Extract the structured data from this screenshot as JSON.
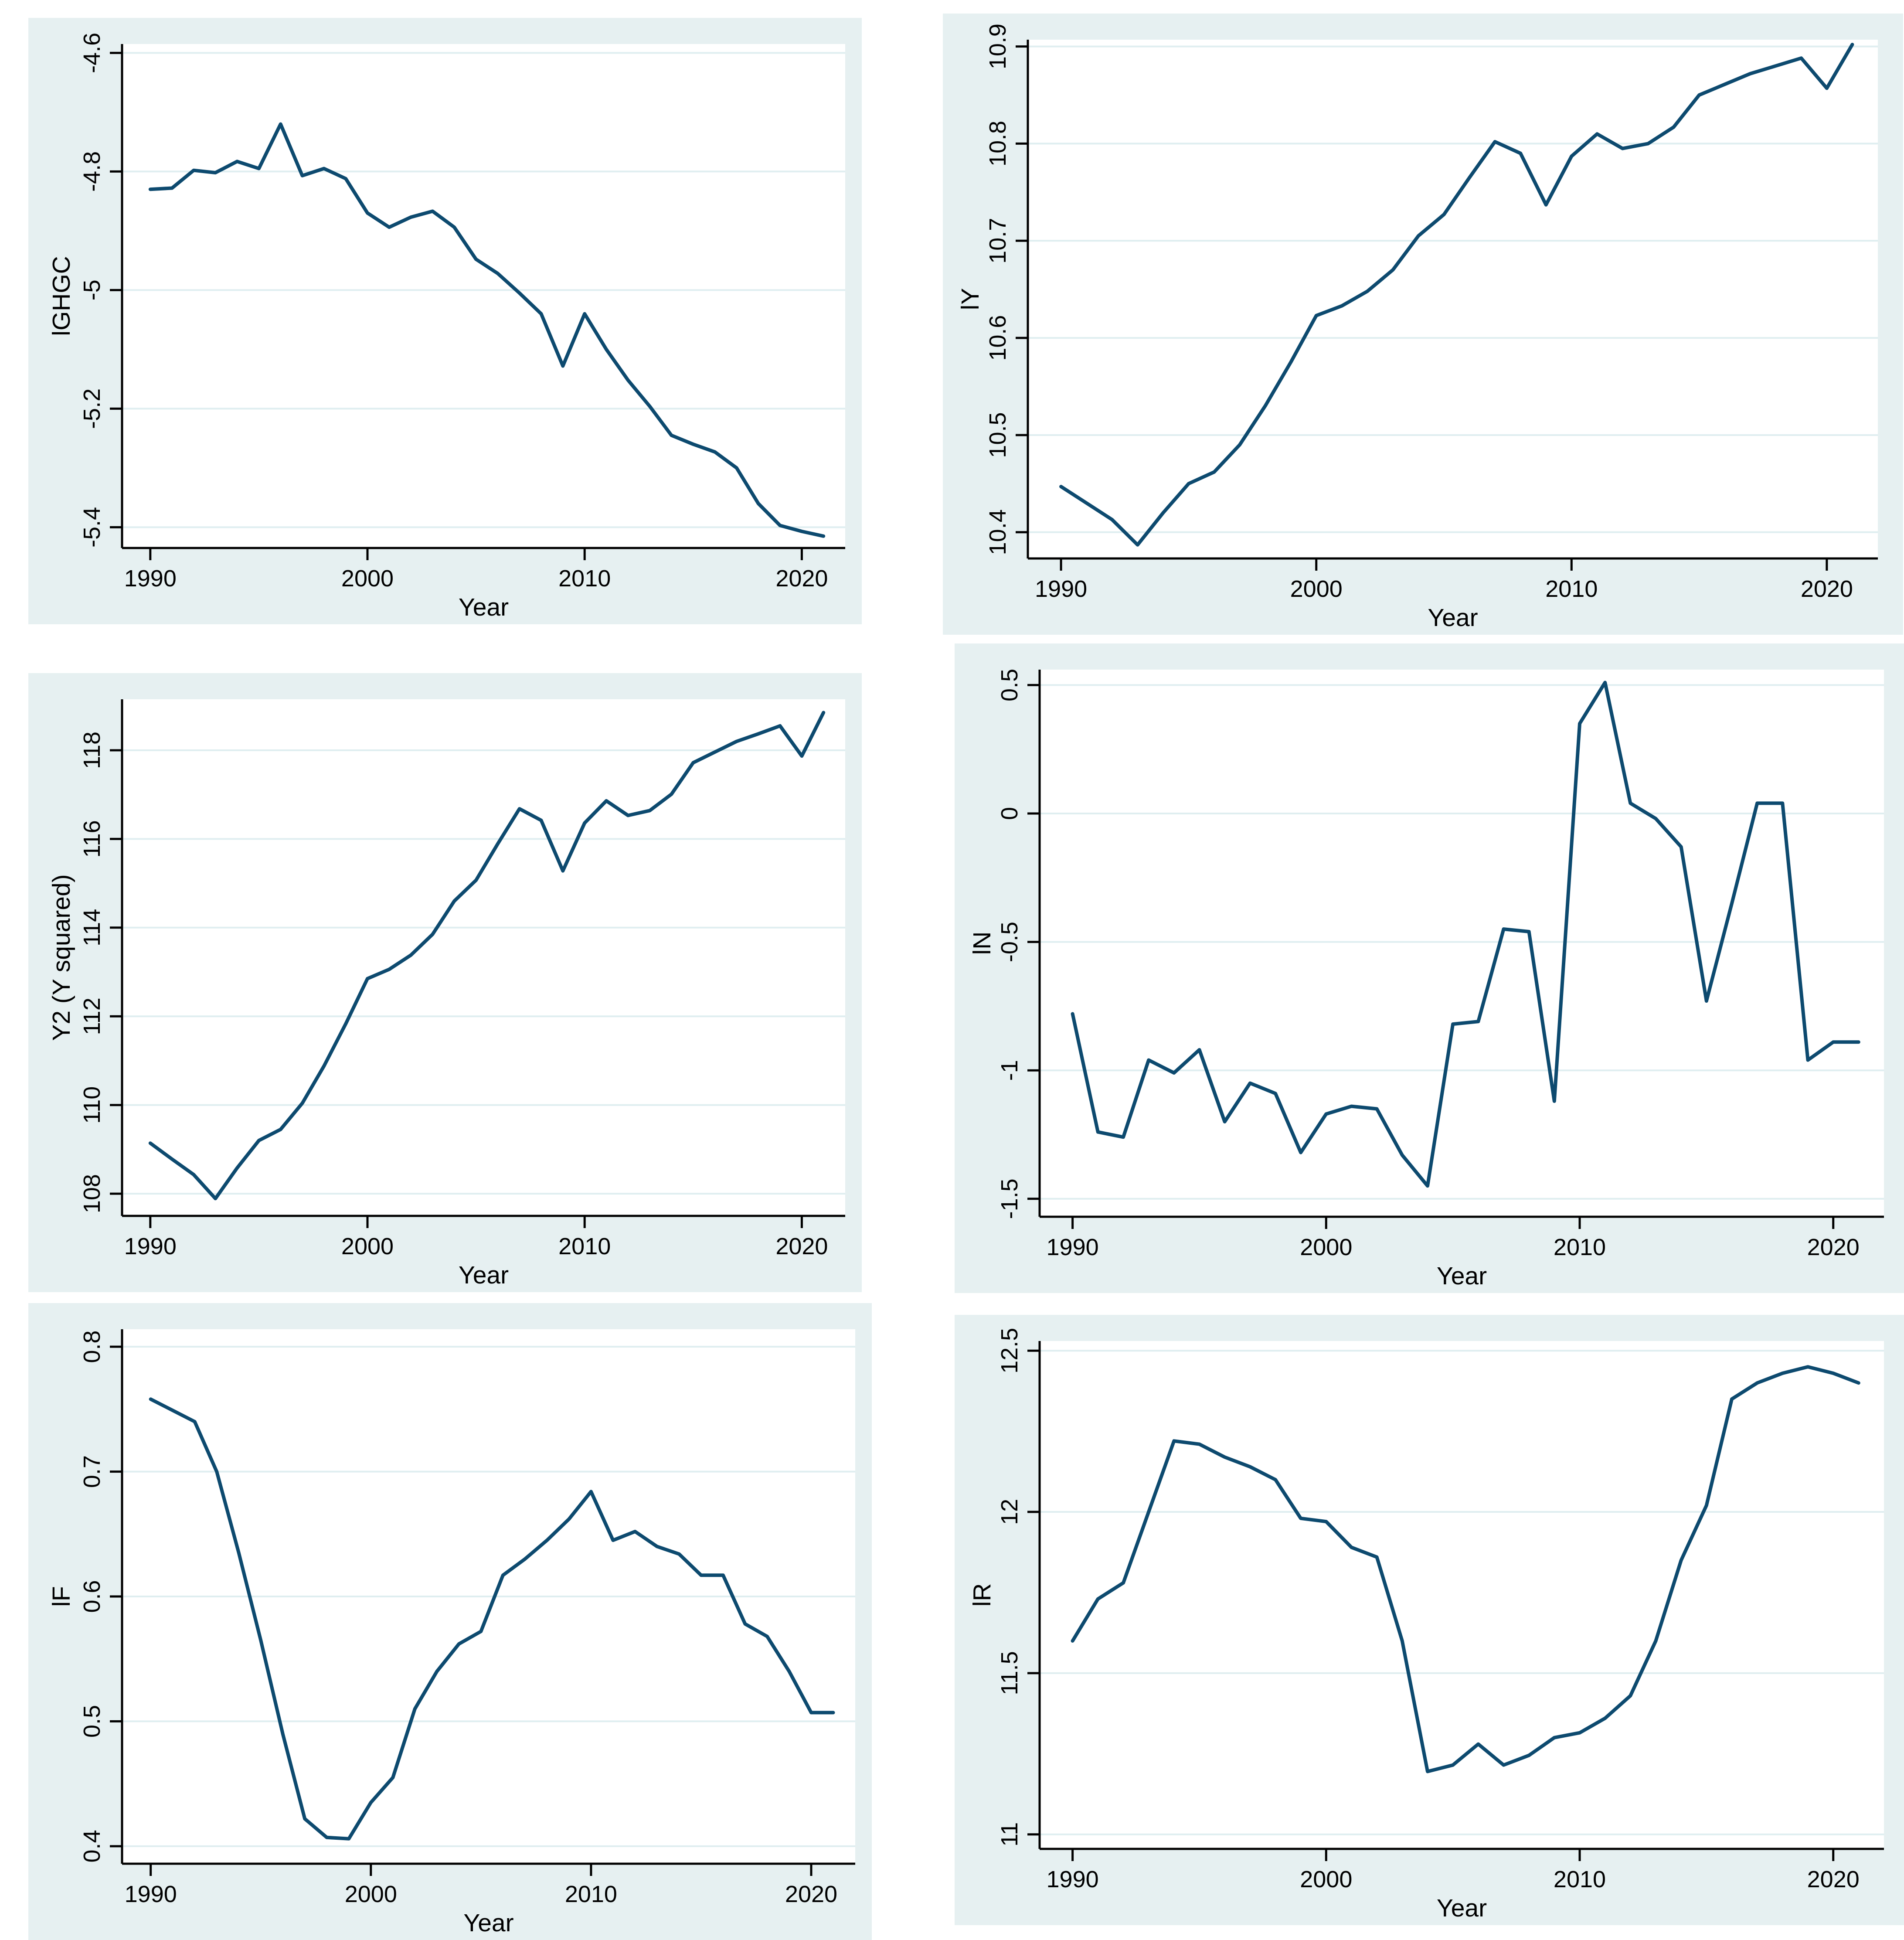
{
  "page": {
    "background": "#ffffff",
    "description": "Six Stata-style time-series line charts in a 2x3 grid"
  },
  "colors": {
    "panel_bg": "#e6f0f1",
    "plot_bg": "#ffffff",
    "grid": "#dfeef0",
    "axis": "#000000",
    "text": "#000000",
    "line": "#0d4a6f"
  },
  "chart_data": [
    {
      "type": "line",
      "name": "lghgc",
      "ylabel": "lGHGC",
      "xlabel": "Year",
      "legend": "none",
      "grid": true,
      "line_color": "#0d4a6f",
      "xlim": [
        1988.7,
        2022
      ],
      "ylim": [
        -5.435,
        -4.585
      ],
      "xticks": [
        1990,
        2000,
        2010,
        2020
      ],
      "xtick_labels": [
        "1990",
        "2000",
        "2010",
        "2020"
      ],
      "ytick_values": [
        -4.6,
        -4.8,
        -5,
        -5.2,
        -5.4
      ],
      "ytick_labels": [
        "-4.6",
        "-4.8",
        "-5",
        "-5.2",
        "-5.4"
      ],
      "x": [
        1990,
        1991,
        1992,
        1993,
        1994,
        1995,
        1996,
        1997,
        1998,
        1999,
        2000,
        2001,
        2002,
        2003,
        2004,
        2005,
        2006,
        2007,
        2008,
        2009,
        2010,
        2011,
        2012,
        2013,
        2014,
        2015,
        2016,
        2017,
        2018,
        2019,
        2020,
        2021
      ],
      "values": [
        -4.83,
        -4.828,
        -4.798,
        -4.802,
        -4.783,
        -4.795,
        -4.72,
        -4.807,
        -4.795,
        -4.812,
        -4.87,
        -4.894,
        -4.877,
        -4.867,
        -4.894,
        -4.948,
        -4.972,
        -5.005,
        -5.04,
        -5.128,
        -5.04,
        -5.1,
        -5.152,
        -5.196,
        -5.245,
        -5.26,
        -5.273,
        -5.3,
        -5.36,
        -5.397,
        -5.407,
        -5.415
      ]
    },
    {
      "type": "line",
      "name": "ly",
      "ylabel": "lY",
      "xlabel": "Year",
      "legend": "none",
      "grid": true,
      "line_color": "#0d4a6f",
      "xlim": [
        1988.7,
        2022
      ],
      "ylim": [
        10.373,
        10.907
      ],
      "xticks": [
        1990,
        2000,
        2010,
        2020
      ],
      "xtick_labels": [
        "1990",
        "2000",
        "2010",
        "2020"
      ],
      "ytick_values": [
        10.4,
        10.5,
        10.6,
        10.7,
        10.8,
        10.9
      ],
      "ytick_labels": [
        "10.4",
        "10.5",
        "10.6",
        "10.7",
        "10.8",
        "10.9"
      ],
      "x": [
        1990,
        1991,
        1992,
        1993,
        1994,
        1995,
        1996,
        1997,
        1998,
        1999,
        2000,
        2001,
        2002,
        2003,
        2004,
        2005,
        2006,
        2007,
        2008,
        2009,
        2010,
        2011,
        2012,
        2013,
        2014,
        2015,
        2016,
        2017,
        2018,
        2019,
        2020,
        2021
      ],
      "values": [
        10.447,
        10.43,
        10.413,
        10.387,
        10.42,
        10.45,
        10.462,
        10.49,
        10.53,
        10.575,
        10.623,
        10.633,
        10.648,
        10.67,
        10.705,
        10.727,
        10.765,
        10.802,
        10.79,
        10.737,
        10.787,
        10.81,
        10.795,
        10.8,
        10.817,
        10.85,
        10.861,
        10.872,
        10.88,
        10.888,
        10.857,
        10.902
      ]
    },
    {
      "type": "line",
      "name": "y2",
      "ylabel": "Y2 (Y squared)",
      "xlabel": "Year",
      "legend": "none",
      "grid": true,
      "line_color": "#0d4a6f",
      "xlim": [
        1988.7,
        2022
      ],
      "ylim": [
        107.5,
        119.15
      ],
      "xticks": [
        1990,
        2000,
        2010,
        2020
      ],
      "xtick_labels": [
        "1990",
        "2000",
        "2010",
        "2020"
      ],
      "ytick_values": [
        108,
        110,
        112,
        114,
        116,
        118
      ],
      "ytick_labels": [
        "108",
        "110",
        "112",
        "114",
        "116",
        "118"
      ],
      "x": [
        1990,
        1991,
        1992,
        1993,
        1994,
        1995,
        1996,
        1997,
        1998,
        1999,
        2000,
        2001,
        2002,
        2003,
        2004,
        2005,
        2006,
        2007,
        2008,
        2009,
        2010,
        2011,
        2012,
        2013,
        2014,
        2015,
        2016,
        2017,
        2018,
        2019,
        2020,
        2021
      ],
      "values": [
        109.14,
        108.78,
        108.43,
        107.89,
        108.58,
        109.2,
        109.45,
        110.04,
        110.88,
        111.83,
        112.85,
        113.06,
        113.38,
        113.85,
        114.6,
        115.07,
        115.89,
        116.68,
        116.42,
        115.28,
        116.36,
        116.86,
        116.53,
        116.64,
        117.01,
        117.72,
        117.96,
        118.2,
        118.37,
        118.55,
        117.87,
        118.85
      ]
    },
    {
      "type": "line",
      "name": "ln",
      "ylabel": "lN",
      "xlabel": "Year",
      "legend": "none",
      "grid": true,
      "line_color": "#0d4a6f",
      "xlim": [
        1988.7,
        2022
      ],
      "ylim": [
        -1.57,
        0.56
      ],
      "xticks": [
        1990,
        2000,
        2010,
        2020
      ],
      "xtick_labels": [
        "1990",
        "2000",
        "2010",
        "2020"
      ],
      "ytick_values": [
        0.5,
        0,
        -0.5,
        -1,
        -1.5
      ],
      "ytick_labels": [
        "0.5",
        "0",
        "-0.5",
        "-1",
        "-1.5"
      ],
      "x": [
        1990,
        1991,
        1992,
        1993,
        1994,
        1995,
        1996,
        1997,
        1998,
        1999,
        2000,
        2001,
        2002,
        2003,
        2004,
        2005,
        2006,
        2007,
        2008,
        2009,
        2010,
        2011,
        2012,
        2013,
        2014,
        2015,
        2016,
        2017,
        2018,
        2019,
        2020,
        2021
      ],
      "values": [
        -0.78,
        -1.24,
        -1.26,
        -0.96,
        -1.01,
        -0.92,
        -1.2,
        -1.05,
        -1.09,
        -1.32,
        -1.17,
        -1.14,
        -1.15,
        -1.33,
        -1.45,
        -0.82,
        -0.81,
        -0.45,
        -0.46,
        -1.12,
        0.35,
        0.51,
        0.04,
        -0.02,
        -0.13,
        -0.73,
        -0.35,
        0.04,
        0.04,
        -0.96,
        -0.89,
        -0.89
      ]
    },
    {
      "type": "line",
      "name": "lf",
      "ylabel": "lF",
      "xlabel": "Year",
      "legend": "none",
      "grid": true,
      "line_color": "#0d4a6f",
      "xlim": [
        1988.7,
        2022
      ],
      "ylim": [
        0.386,
        0.814
      ],
      "xticks": [
        1990,
        2000,
        2010,
        2020
      ],
      "xtick_labels": [
        "1990",
        "2000",
        "2010",
        "2020"
      ],
      "ytick_values": [
        0.4,
        0.5,
        0.6,
        0.7,
        0.8
      ],
      "ytick_labels": [
        "0.4",
        "0.5",
        "0.6",
        "0.7",
        "0.8"
      ],
      "x": [
        1990,
        1991,
        1992,
        1993,
        1994,
        1995,
        1996,
        1997,
        1998,
        1999,
        2000,
        2001,
        2002,
        2003,
        2004,
        2005,
        2006,
        2007,
        2008,
        2009,
        2010,
        2011,
        2012,
        2013,
        2014,
        2015,
        2016,
        2017,
        2018,
        2019,
        2020,
        2021
      ],
      "values": [
        0.758,
        0.749,
        0.74,
        0.7,
        0.635,
        0.565,
        0.49,
        0.422,
        0.407,
        0.406,
        0.435,
        0.455,
        0.51,
        0.54,
        0.562,
        0.572,
        0.617,
        0.63,
        0.645,
        0.662,
        0.684,
        0.645,
        0.652,
        0.64,
        0.634,
        0.617,
        0.617,
        0.578,
        0.568,
        0.54,
        0.507,
        0.507
      ]
    },
    {
      "type": "line",
      "name": "lr",
      "ylabel": "lR",
      "xlabel": "Year",
      "legend": "none",
      "grid": true,
      "line_color": "#0d4a6f",
      "xlim": [
        1988.7,
        2022
      ],
      "ylim": [
        10.955,
        12.53
      ],
      "xticks": [
        1990,
        2000,
        2010,
        2020
      ],
      "xtick_labels": [
        "1990",
        "2000",
        "2010",
        "2020"
      ],
      "ytick_values": [
        11,
        11.5,
        12,
        12.5
      ],
      "ytick_labels": [
        "11",
        "11.5",
        "12",
        "12.5"
      ],
      "x": [
        1990,
        1991,
        1992,
        1993,
        1994,
        1995,
        1996,
        1997,
        1998,
        1999,
        2000,
        2001,
        2002,
        2003,
        2004,
        2005,
        2006,
        2007,
        2008,
        2009,
        2010,
        2011,
        2012,
        2013,
        2014,
        2015,
        2016,
        2017,
        2018,
        2019,
        2020,
        2021
      ],
      "values": [
        11.6,
        11.73,
        11.78,
        12.0,
        12.22,
        12.21,
        12.17,
        12.14,
        12.1,
        11.98,
        11.97,
        11.89,
        11.86,
        11.6,
        11.195,
        11.215,
        11.28,
        11.215,
        11.245,
        11.3,
        11.315,
        11.36,
        11.43,
        11.6,
        11.85,
        12.02,
        12.35,
        12.4,
        12.43,
        12.45,
        12.43,
        12.4
      ]
    }
  ]
}
